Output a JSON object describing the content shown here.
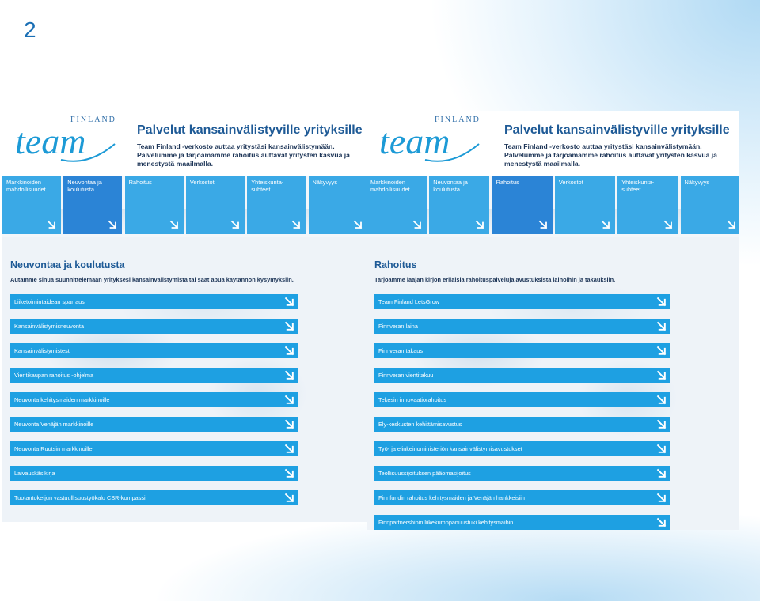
{
  "slide": {
    "number": "2"
  },
  "logo": {
    "text_top": "FINLAND",
    "text_main": "team"
  },
  "header": {
    "title": "Palvelut kansainvälistyville yrityksille",
    "desc_lines": [
      "Team Finland -verkosto auttaa yritystäsi kansainvälistymään.",
      "Palvelumme ja tarjoamamme rahoitus auttavat yritysten kasvua ja",
      "menestystä maailmalla."
    ]
  },
  "nav": [
    {
      "label_lines": [
        "Markkinoiden",
        "mahdollisuudet"
      ]
    },
    {
      "label_lines": [
        "Neuvontaa ja",
        "koulutusta"
      ]
    },
    {
      "label_lines": [
        "Rahoitus"
      ]
    },
    {
      "label_lines": [
        "Verkostot"
      ]
    },
    {
      "label_lines": [
        "Yhteiskunta-",
        "suhteet"
      ]
    },
    {
      "label_lines": [
        "Näkyvyys"
      ]
    }
  ],
  "left": {
    "active_nav": 1,
    "section_title": "Neuvontaa ja koulutusta",
    "section_desc": "Autamme sinua suunnittelemaan yrityksesi kansainvälistymistä tai saat apua käytännön kysymyksiin.",
    "links": [
      "Liiketoimintaidean sparraus",
      "Kansainvälistymisneuvonta",
      "Kansainvälistymistesti",
      "Vientikaupan rahoitus -ohjelma",
      "Neuvonta kehitysmaiden markkinoille",
      "Neuvonta Venäjän markkinoille",
      "Neuvonta Ruotsin markkinoille",
      "Laivauskäsikirja",
      "Tuotantoketjun vastuullisuustyökalu CSR-kompassi"
    ]
  },
  "right": {
    "active_nav": 2,
    "section_title": "Rahoitus",
    "section_desc": "Tarjoamme laajan kirjon erilaisia rahoituspalveluja avustuksista lainoihin ja takauksiin.",
    "links": [
      "Team Finland LetsGrow",
      "Finnveran laina",
      "Finnveran takaus",
      "Finnveran vientitakuu",
      "Tekesin innovaatiorahoitus",
      "Ely-keskusten kehittämisavustus",
      "Työ- ja elinkeinoministeriön kansainvälistymisavustukset",
      "Teollisuussijoituksen pääomasijoitus",
      "Finnfundin rahoitus kehitysmaiden ja Venäjän hankkeisiin",
      "Finnpartnershipin liikekumppanuustuki kehitysmaihin"
    ]
  },
  "colors": {
    "tile": "#3aa9e6",
    "tile_active": "#2b84d6",
    "link_bar": "#1ea0e2",
    "title": "#1e5a96"
  }
}
